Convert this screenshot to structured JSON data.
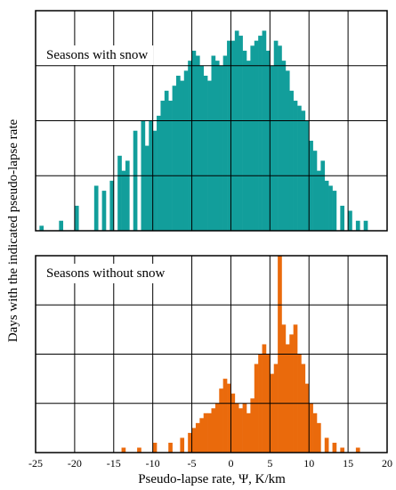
{
  "chart_data": {
    "type": "bar",
    "xlabel": "Pseudo-lapse rate, Ψ, K/km",
    "ylabel": "Days with the indicated pseudo-lapse rate",
    "xlim": [
      -25,
      20
    ],
    "xticks": [
      -25,
      -20,
      -15,
      -10,
      -5,
      0,
      5,
      10,
      15,
      20
    ],
    "bin_width": 0.5,
    "grid": true,
    "colors": {
      "snow": "#129e9b",
      "no_snow": "#ea6a0c"
    },
    "panels": [
      {
        "label": "Seasons with snow",
        "ylim": [
          0,
          44
        ],
        "bins": [
          [
            -24.5,
            1
          ],
          [
            -22.0,
            2
          ],
          [
            -20.0,
            5
          ],
          [
            -17.5,
            9
          ],
          [
            -16.5,
            8
          ],
          [
            -15.5,
            10
          ],
          [
            -14.5,
            15
          ],
          [
            -14.0,
            12
          ],
          [
            -13.5,
            14
          ],
          [
            -12.5,
            20
          ],
          [
            -11.5,
            22
          ],
          [
            -11.0,
            17
          ],
          [
            -10.5,
            22
          ],
          [
            -10.0,
            20
          ],
          [
            -9.5,
            23
          ],
          [
            -9.0,
            26
          ],
          [
            -8.5,
            28
          ],
          [
            -8.0,
            26
          ],
          [
            -7.5,
            29
          ],
          [
            -7.0,
            31
          ],
          [
            -6.5,
            30
          ],
          [
            -6.0,
            32
          ],
          [
            -5.5,
            34
          ],
          [
            -5.0,
            36
          ],
          [
            -4.5,
            35
          ],
          [
            -4.0,
            33
          ],
          [
            -3.5,
            31
          ],
          [
            -3.0,
            30
          ],
          [
            -2.5,
            35
          ],
          [
            -2.0,
            34
          ],
          [
            -1.5,
            33
          ],
          [
            -1.0,
            35
          ],
          [
            -0.5,
            38
          ],
          [
            0.0,
            38
          ],
          [
            0.5,
            40
          ],
          [
            1.0,
            39
          ],
          [
            1.5,
            36
          ],
          [
            2.0,
            34
          ],
          [
            2.5,
            37
          ],
          [
            3.0,
            38
          ],
          [
            3.5,
            39
          ],
          [
            4.0,
            40
          ],
          [
            4.5,
            36
          ],
          [
            5.0,
            33
          ],
          [
            5.5,
            38
          ],
          [
            6.0,
            37
          ],
          [
            6.5,
            34
          ],
          [
            7.0,
            32
          ],
          [
            7.5,
            28
          ],
          [
            8.0,
            26
          ],
          [
            8.5,
            25
          ],
          [
            9.0,
            24
          ],
          [
            9.5,
            22
          ],
          [
            10.0,
            18
          ],
          [
            10.5,
            16
          ],
          [
            11.0,
            12
          ],
          [
            11.5,
            14
          ],
          [
            12.0,
            10
          ],
          [
            12.5,
            9
          ],
          [
            13.0,
            8
          ],
          [
            14.0,
            5
          ],
          [
            15.0,
            4
          ],
          [
            16.0,
            2
          ],
          [
            17.0,
            2
          ]
        ]
      },
      {
        "label": "Seasons without snow",
        "ylim": [
          0,
          40
        ],
        "bins": [
          [
            -14.0,
            1
          ],
          [
            -12.0,
            1
          ],
          [
            -10.0,
            2
          ],
          [
            -8.0,
            2
          ],
          [
            -6.5,
            3
          ],
          [
            -5.5,
            4
          ],
          [
            -5.0,
            5
          ],
          [
            -4.5,
            6
          ],
          [
            -4.0,
            7
          ],
          [
            -3.5,
            8
          ],
          [
            -3.0,
            8
          ],
          [
            -2.5,
            9
          ],
          [
            -2.0,
            10
          ],
          [
            -1.5,
            13
          ],
          [
            -1.0,
            15
          ],
          [
            -0.5,
            14
          ],
          [
            0.0,
            12
          ],
          [
            0.5,
            10
          ],
          [
            1.0,
            9
          ],
          [
            1.5,
            10
          ],
          [
            2.0,
            8
          ],
          [
            2.5,
            11
          ],
          [
            3.0,
            18
          ],
          [
            3.5,
            20
          ],
          [
            4.0,
            22
          ],
          [
            4.5,
            20
          ],
          [
            5.0,
            16
          ],
          [
            5.5,
            18
          ],
          [
            6.0,
            40
          ],
          [
            6.5,
            26
          ],
          [
            7.0,
            22
          ],
          [
            7.5,
            24
          ],
          [
            8.0,
            26
          ],
          [
            8.5,
            20
          ],
          [
            9.0,
            18
          ],
          [
            9.5,
            14
          ],
          [
            10.0,
            10
          ],
          [
            10.5,
            8
          ],
          [
            11.0,
            6
          ],
          [
            12.0,
            3
          ],
          [
            13.0,
            2
          ],
          [
            14.0,
            1
          ],
          [
            16.0,
            1
          ]
        ]
      }
    ]
  }
}
